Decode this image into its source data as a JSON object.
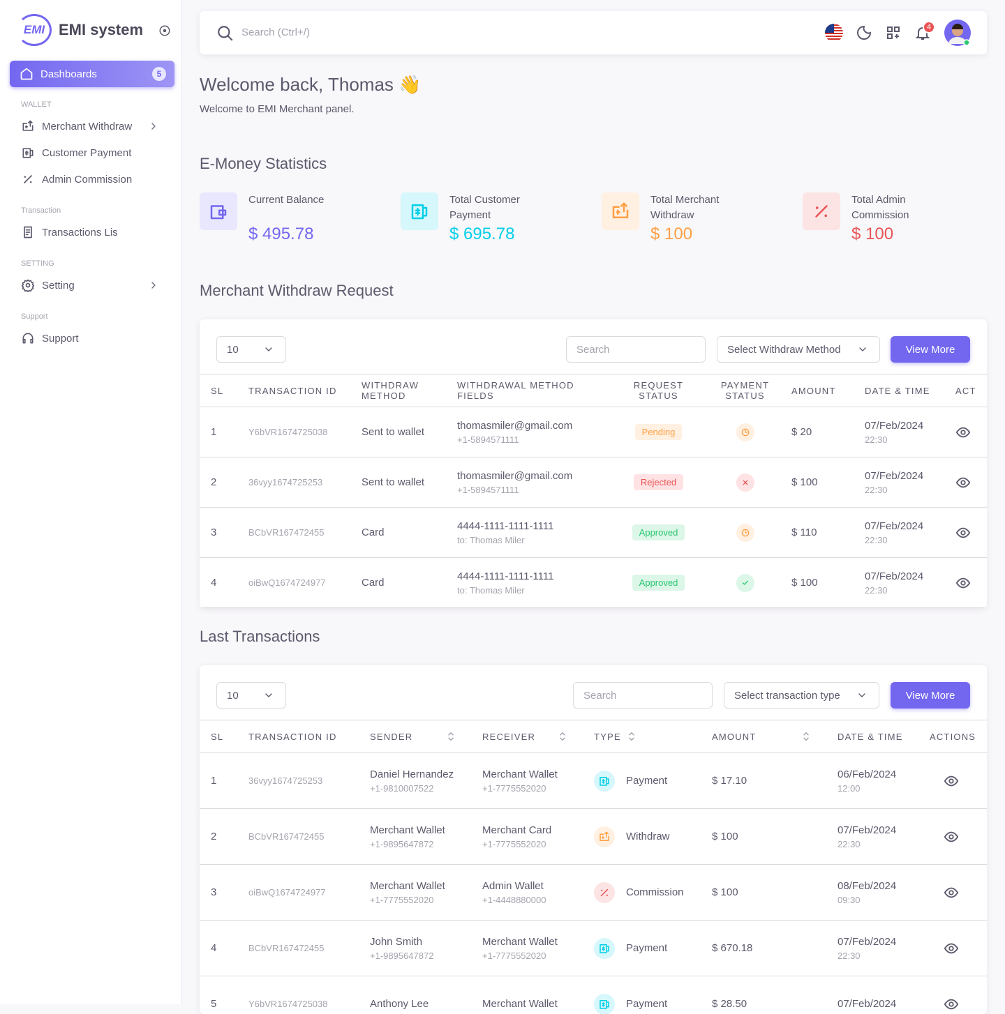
{
  "sidebar": {
    "logo": "EMI",
    "brand": "EMI system",
    "active": {
      "label": "Dashboards",
      "badge": "5"
    },
    "sections": [
      {
        "title": "WALLET",
        "items": [
          {
            "label": "Merchant Withdraw"
          },
          {
            "label": "Customer Payment"
          },
          {
            "label": "Admin Commission"
          }
        ]
      },
      {
        "title": "Transaction",
        "items": [
          {
            "label": "Transactions Lis"
          }
        ]
      },
      {
        "title": "SETTING",
        "items": [
          {
            "label": "Setting"
          }
        ]
      },
      {
        "title": "Support",
        "items": [
          {
            "label": "Support"
          }
        ]
      }
    ]
  },
  "topbar": {
    "search": "Search (Ctrl+/)",
    "notifications": "4"
  },
  "welcome": {
    "title": "Welcome back, Thomas",
    "emoji": "👋",
    "subtitle": "Welcome to EMI Merchant panel."
  },
  "stats": {
    "title": "E-Money Statistics",
    "cards": [
      {
        "label": "Current Balance",
        "value": "$ 495.78"
      },
      {
        "label": "Total Customer Payment",
        "value": "$ 695.78"
      },
      {
        "label": "Total Merchant Withdraw",
        "value": "$ 100"
      },
      {
        "label": "Total Admin Commission",
        "value": "$ 100"
      }
    ]
  },
  "withdraw": {
    "title": "Merchant Withdraw Request",
    "page_size": "10",
    "search": "Search",
    "filter": "Select Withdraw Method",
    "button": "View More",
    "headers": [
      "SL",
      "TRANSACTION ID",
      "WITHDRAW METHOD",
      "WITHDRAWAL METHOD FIELDS",
      "REQUEST STATUS",
      "PAYMENT STATUS",
      "AMOUNT",
      "DATE & TIME",
      "ACT"
    ],
    "rows": [
      {
        "sl": 1,
        "id": "Y6bVR1674725038",
        "method": "Sent to wallet",
        "field": "thomasmiler@gmail.com",
        "field_sub": "+1-5894571111",
        "request_status": "Pending",
        "amount": "$ 20",
        "date": "07/Feb/2024",
        "time": "22:30"
      },
      {
        "sl": 2,
        "id": "36vyy1674725253",
        "method": "Sent to wallet",
        "field": "thomasmiler@gmail.com",
        "field_sub": "+1-5894571111",
        "request_status": "Rejected",
        "amount": "$ 100",
        "date": "07/Feb/2024",
        "time": "22:30"
      },
      {
        "sl": 3,
        "id": "BCbVR167472455",
        "method": "Card",
        "field": "4444-1111-1111-1111",
        "field_sub": "to: Thomas Miler",
        "request_status": "Approved",
        "amount": "$ 110",
        "date": "07/Feb/2024",
        "time": "22:30"
      },
      {
        "sl": 4,
        "id": "oiBwQ1674724977",
        "method": "Card",
        "field": "4444-1111-1111-1111",
        "field_sub": "to: Thomas Miler",
        "request_status": "Approved",
        "amount": "$ 100",
        "date": "07/Feb/2024",
        "time": "22:30"
      }
    ]
  },
  "transactions": {
    "title": "Last Transactions",
    "page_size": "10",
    "search": "Search",
    "filter": "Select transaction type",
    "button": "View More",
    "headers": [
      "SL",
      "TRANSACTION ID",
      "SENDER",
      "RECEIVER",
      "TYPE",
      "AMOUNT",
      "DATE & TIME",
      "ACTIONS"
    ],
    "rows": [
      {
        "sl": 1,
        "id": "36vyy1674725253",
        "sender": "Daniel Hernandez",
        "sender_phone": "+1-9810007522",
        "receiver": "Merchant Wallet",
        "receiver_phone": "+1-7775552020",
        "type": "Payment",
        "amount": "$ 17.10",
        "date": "06/Feb/2024",
        "time": "12:00"
      },
      {
        "sl": 2,
        "id": "BCbVR167472455",
        "sender": "Merchant Wallet",
        "sender_phone": "+1-9895647872",
        "receiver": "Merchant Card",
        "receiver_phone": "+1-7775552020",
        "type": "Withdraw",
        "amount": "$ 100",
        "date": "07/Feb/2024",
        "time": "22:30"
      },
      {
        "sl": 3,
        "id": "oiBwQ1674724977",
        "sender": "Merchant Wallet",
        "sender_phone": "+1-7775552020",
        "receiver": "Admin Wallet",
        "receiver_phone": "+1-4448880000",
        "type": "Commission",
        "amount": "$ 100",
        "date": "08/Feb/2024",
        "time": "09:30"
      },
      {
        "sl": 4,
        "id": "BCbVR167472455",
        "sender": "John Smith",
        "sender_phone": "+1-9895647872",
        "receiver": "Merchant Wallet",
        "receiver_phone": "+1-7775552020",
        "type": "Payment",
        "amount": "$ 670.18",
        "date": "07/Feb/2024",
        "time": "22:30"
      },
      {
        "sl": 5,
        "id": "Y6bVR1674725038",
        "sender": "Anthony Lee",
        "receiver": "Merchant Wallet",
        "type": "Payment",
        "amount": "$ 28.50",
        "date": "07/Feb/2024"
      }
    ]
  }
}
